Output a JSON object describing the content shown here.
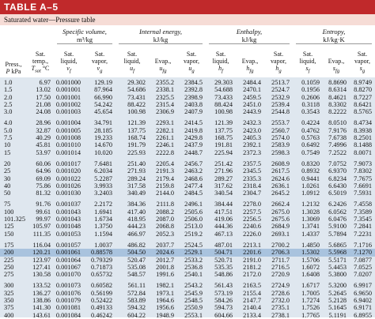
{
  "header": {
    "title": "TABLE A–5",
    "subtitle": "Saturated water—Pressure table"
  },
  "groups": [
    {
      "title": "Specific volume,",
      "unit": "m³/kg",
      "start": 2,
      "span": 2
    },
    {
      "title": "Internal energy,",
      "unit": "kJ/kg",
      "start": 4,
      "span": 3
    },
    {
      "title": "Enthalpy,",
      "unit": "kJ/kg",
      "start": 7,
      "span": 3
    },
    {
      "title": "Entropy,",
      "unit": "kJ/kg·K",
      "start": 10,
      "span": 3
    }
  ],
  "columns": [
    {
      "lines": [
        "Press.,"
      ],
      "sym": "P",
      "sub": "",
      "after": "kPa"
    },
    {
      "lines": [
        "Sat.",
        "temp.,"
      ],
      "sym": "T",
      "sub": "sat",
      "after": "°C"
    },
    {
      "lines": [
        "Sat.",
        "liquid,"
      ],
      "sym": "v",
      "sub": "f",
      "after": ""
    },
    {
      "lines": [
        "Sat.",
        "vapor,"
      ],
      "sym": "v",
      "sub": "g",
      "after": ""
    },
    {
      "lines": [
        "Sat.",
        "liquid,"
      ],
      "sym": "u",
      "sub": "f",
      "after": ""
    },
    {
      "lines": [
        "Evap.,"
      ],
      "sym": "u",
      "sub": "fg",
      "after": ""
    },
    {
      "lines": [
        "Sat.",
        "vapor,"
      ],
      "sym": "u",
      "sub": "g",
      "after": ""
    },
    {
      "lines": [
        "Sat.",
        "liquid,"
      ],
      "sym": "h",
      "sub": "f",
      "after": ""
    },
    {
      "lines": [
        "Evap.,"
      ],
      "sym": "h",
      "sub": "fg",
      "after": ""
    },
    {
      "lines": [
        "Sat.",
        "vapor,"
      ],
      "sym": "h",
      "sub": "g",
      "after": ""
    },
    {
      "lines": [
        "Sat.",
        "liquid,"
      ],
      "sym": "s",
      "sub": "f",
      "after": ""
    },
    {
      "lines": [
        "Evap.,"
      ],
      "sym": "s",
      "sub": "fg",
      "after": ""
    },
    {
      "lines": [
        "Sat.",
        "vapor,"
      ],
      "sym": "s",
      "sub": "g",
      "after": ""
    }
  ],
  "rows": [
    [
      [
        "1.0",
        "6.97",
        "0.001000",
        "129.19",
        "29.302",
        "2355.2",
        "2384.5",
        "29.303",
        "2484.4",
        "2513.7",
        "0.1059",
        "8.8690",
        "8.9749"
      ],
      [
        "1.5",
        "13.02",
        "0.001001",
        "87.964",
        "54.686",
        "2338.1",
        "2392.8",
        "54.688",
        "2470.1",
        "2524.7",
        "0.1956",
        "8.6314",
        "8.8270"
      ],
      [
        "2.0",
        "17.50",
        "0.001001",
        "66.990",
        "73.431",
        "2325.5",
        "2398.9",
        "73.433",
        "2459.5",
        "2532.9",
        "0.2606",
        "8.4621",
        "8.7227"
      ],
      [
        "2.5",
        "21.08",
        "0.001002",
        "54.242",
        "88.422",
        "2315.4",
        "2403.8",
        "88.424",
        "2451.0",
        "2539.4",
        "0.3118",
        "8.3302",
        "8.6421"
      ],
      [
        "3.0",
        "24.08",
        "0.001003",
        "45.654",
        "100.98",
        "2306.9",
        "2407.9",
        "100.98",
        "2443.9",
        "2544.8",
        "0.3543",
        "8.2222",
        "8.5765"
      ]
    ],
    [
      [
        "4.0",
        "28.96",
        "0.001004",
        "34.791",
        "121.39",
        "2293.1",
        "2414.5",
        "121.39",
        "2432.3",
        "2553.7",
        "0.4224",
        "8.0510",
        "8.4734"
      ],
      [
        "5.0",
        "32.87",
        "0.001005",
        "28.185",
        "137.75",
        "2282.1",
        "2419.8",
        "137.75",
        "2423.0",
        "2560.7",
        "0.4762",
        "7.9176",
        "8.3938"
      ],
      [
        "7.5",
        "40.29",
        "0.001008",
        "19.233",
        "168.74",
        "2261.1",
        "2429.8",
        "168.75",
        "2405.3",
        "2574.0",
        "0.5763",
        "7.6738",
        "8.2501"
      ],
      [
        "10",
        "45.81",
        "0.001010",
        "14.670",
        "191.79",
        "2246.1",
        "2437.9",
        "191.81",
        "2392.1",
        "2583.9",
        "0.6492",
        "7.4996",
        "8.1488"
      ],
      [
        "15",
        "53.97",
        "0.001014",
        "10.020",
        "225.93",
        "2222.8",
        "2448.7",
        "225.94",
        "2372.3",
        "2598.3",
        "0.7549",
        "7.2522",
        "8.0071"
      ]
    ],
    [
      [
        "20",
        "60.06",
        "0.001017",
        "7.6481",
        "251.40",
        "2205.4",
        "2456.7",
        "251.42",
        "2357.5",
        "2608.9",
        "0.8320",
        "7.0752",
        "7.9073"
      ],
      [
        "25",
        "64.96",
        "0.001020",
        "6.2034",
        "271.93",
        "2191.3",
        "2463.2",
        "271.96",
        "2345.5",
        "2617.5",
        "0.8932",
        "6.9370",
        "7.8302"
      ],
      [
        "30",
        "69.09",
        "0.001022",
        "5.2287",
        "289.24",
        "2179.4",
        "2468.6",
        "289.27",
        "2335.3",
        "2624.6",
        "0.9441",
        "6.8234",
        "7.7675"
      ],
      [
        "40",
        "75.86",
        "0.001026",
        "3.9933",
        "317.58",
        "2159.8",
        "2477.4",
        "317.62",
        "2318.4",
        "2636.1",
        "1.0261",
        "6.6430",
        "7.6691"
      ],
      [
        "50",
        "81.32",
        "0.001030",
        "3.2403",
        "340.49",
        "2144.0",
        "2484.5",
        "340.54",
        "2304.7",
        "2645.2",
        "1.0912",
        "6.5019",
        "7.5931"
      ]
    ],
    [
      [
        "75",
        "91.76",
        "0.001037",
        "2.2172",
        "384.36",
        "2111.8",
        "2496.1",
        "384.44",
        "2278.0",
        "2662.4",
        "1.2132",
        "6.2426",
        "7.4558"
      ],
      [
        "100",
        "99.61",
        "0.001043",
        "1.6941",
        "417.40",
        "2088.2",
        "2505.6",
        "417.51",
        "2257.5",
        "2675.0",
        "1.3028",
        "6.0562",
        "7.3589"
      ],
      [
        "101.325",
        "99.97",
        "0.001043",
        "1.6734",
        "418.95",
        "2087.0",
        "2506.0",
        "419.06",
        "2256.5",
        "2675.6",
        "1.3069",
        "6.0476",
        "7.3545"
      ],
      [
        "125",
        "105.97",
        "0.001048",
        "1.3750",
        "444.23",
        "2068.8",
        "2513.0",
        "444.36",
        "2240.6",
        "2684.9",
        "1.3741",
        "5.9100",
        "7.2841"
      ],
      [
        "150",
        "111.35",
        "0.001053",
        "1.1594",
        "466.97",
        "2052.3",
        "2519.2",
        "467.13",
        "2226.0",
        "2693.1",
        "1.4337",
        "5.7894",
        "7.2231"
      ]
    ],
    [
      [
        "175",
        "116.04",
        "0.001057",
        "1.0037",
        "486.82",
        "2037.7",
        "2524.5",
        "487.01",
        "2213.1",
        "2700.2",
        "1.4850",
        "5.6865",
        "7.1716"
      ],
      [
        "200",
        "120.21",
        "0.001061",
        "0.88578",
        "504.50",
        "2024.6",
        "2529.1",
        "504.71",
        "2201.6",
        "2706.3",
        "1.5302",
        "5.5968",
        "7.1270"
      ],
      [
        "225",
        "123.97",
        "0.001064",
        "0.79329",
        "520.47",
        "2012.7",
        "2533.2",
        "520.71",
        "2191.0",
        "2711.7",
        "1.5706",
        "5.5171",
        "7.0877"
      ],
      [
        "250",
        "127.41",
        "0.001067",
        "0.71873",
        "535.08",
        "2001.8",
        "2536.8",
        "535.35",
        "2181.2",
        "2716.5",
        "1.6072",
        "5.4453",
        "7.0525"
      ],
      [
        "275",
        "130.58",
        "0.001070",
        "0.65732",
        "548.57",
        "1991.6",
        "2540.1",
        "548.86",
        "2172.0",
        "2720.9",
        "1.6408",
        "5.3800",
        "7.0207"
      ]
    ],
    [
      [
        "300",
        "133.52",
        "0.001073",
        "0.60582",
        "561.11",
        "1982.1",
        "2543.2",
        "561.43",
        "2163.5",
        "2724.9",
        "1.6717",
        "5.3200",
        "6.9917"
      ],
      [
        "325",
        "136.27",
        "0.001076",
        "0.56199",
        "572.84",
        "1973.1",
        "2545.9",
        "573.19",
        "2155.4",
        "2728.6",
        "1.7005",
        "5.2645",
        "6.9650"
      ],
      [
        "350",
        "138.86",
        "0.001079",
        "0.52422",
        "583.89",
        "1964.6",
        "2548.5",
        "584.26",
        "2147.7",
        "2732.0",
        "1.7274",
        "5.2128",
        "6.9402"
      ],
      [
        "375",
        "141.30",
        "0.001081",
        "0.49133",
        "594.32",
        "1956.6",
        "2550.9",
        "594.73",
        "2140.4",
        "2735.1",
        "1.7526",
        "5.1645",
        "6.9171"
      ],
      [
        "400",
        "143.61",
        "0.001084",
        "0.46242",
        "604.22",
        "1948.9",
        "2553.1",
        "604.66",
        "2133.4",
        "2738.1",
        "1.7765",
        "5.1191",
        "6.8955"
      ]
    ]
  ]
}
